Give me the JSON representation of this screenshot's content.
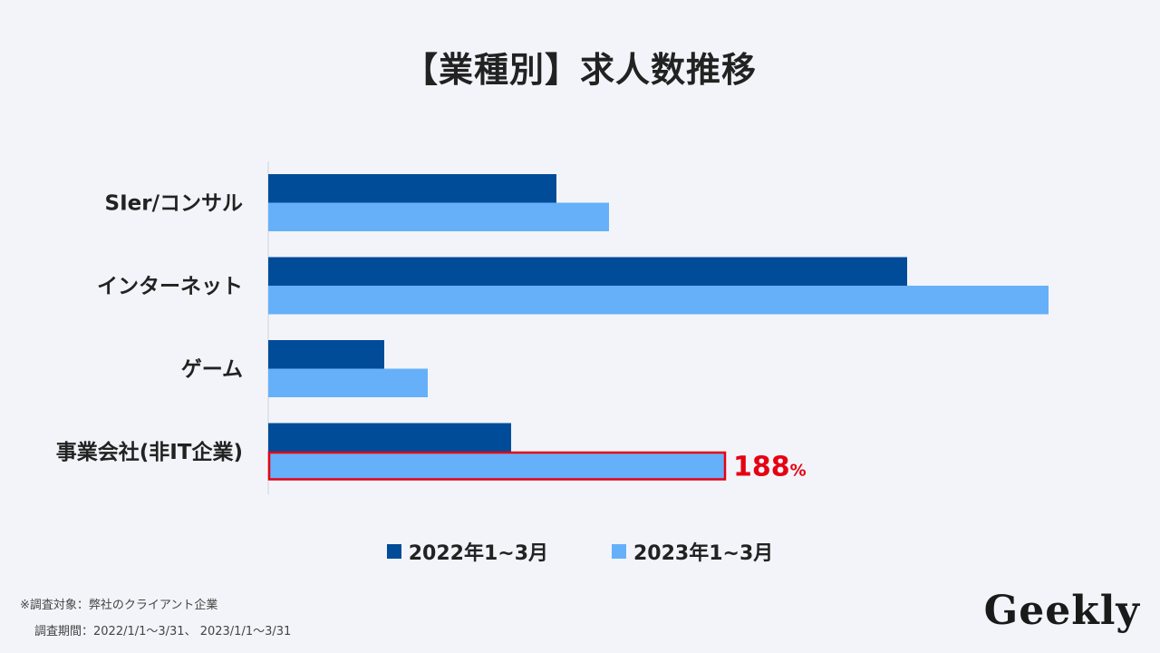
{
  "chart_data": {
    "type": "bar",
    "orientation": "horizontal",
    "title": "【業種別】求人数推移",
    "categories": [
      "SIer/コンサル",
      "インターネット",
      "ゲーム",
      "事業会社(非IT企業)"
    ],
    "series": [
      {
        "name": "2022年1~3月",
        "color": "#004c98",
        "values": [
          318,
          705,
          128,
          268
        ]
      },
      {
        "name": "2023年1~3月",
        "color": "#66b0f9",
        "values": [
          376,
          861,
          176,
          503
        ]
      }
    ],
    "xlim": [
      0,
      900
    ],
    "grid": false,
    "legend_position": "bottom",
    "annotation": {
      "category_index": 3,
      "series_index": 1,
      "text": "188",
      "unit": "%",
      "color": "#e60012"
    }
  },
  "footer": {
    "note_line1": "※調査対象：弊社のクライアント企業",
    "note_line2": "調査期間：2022/1/1〜3/31、 2023/1/1〜3/31"
  },
  "brand": {
    "logo_text": "Geekly"
  }
}
